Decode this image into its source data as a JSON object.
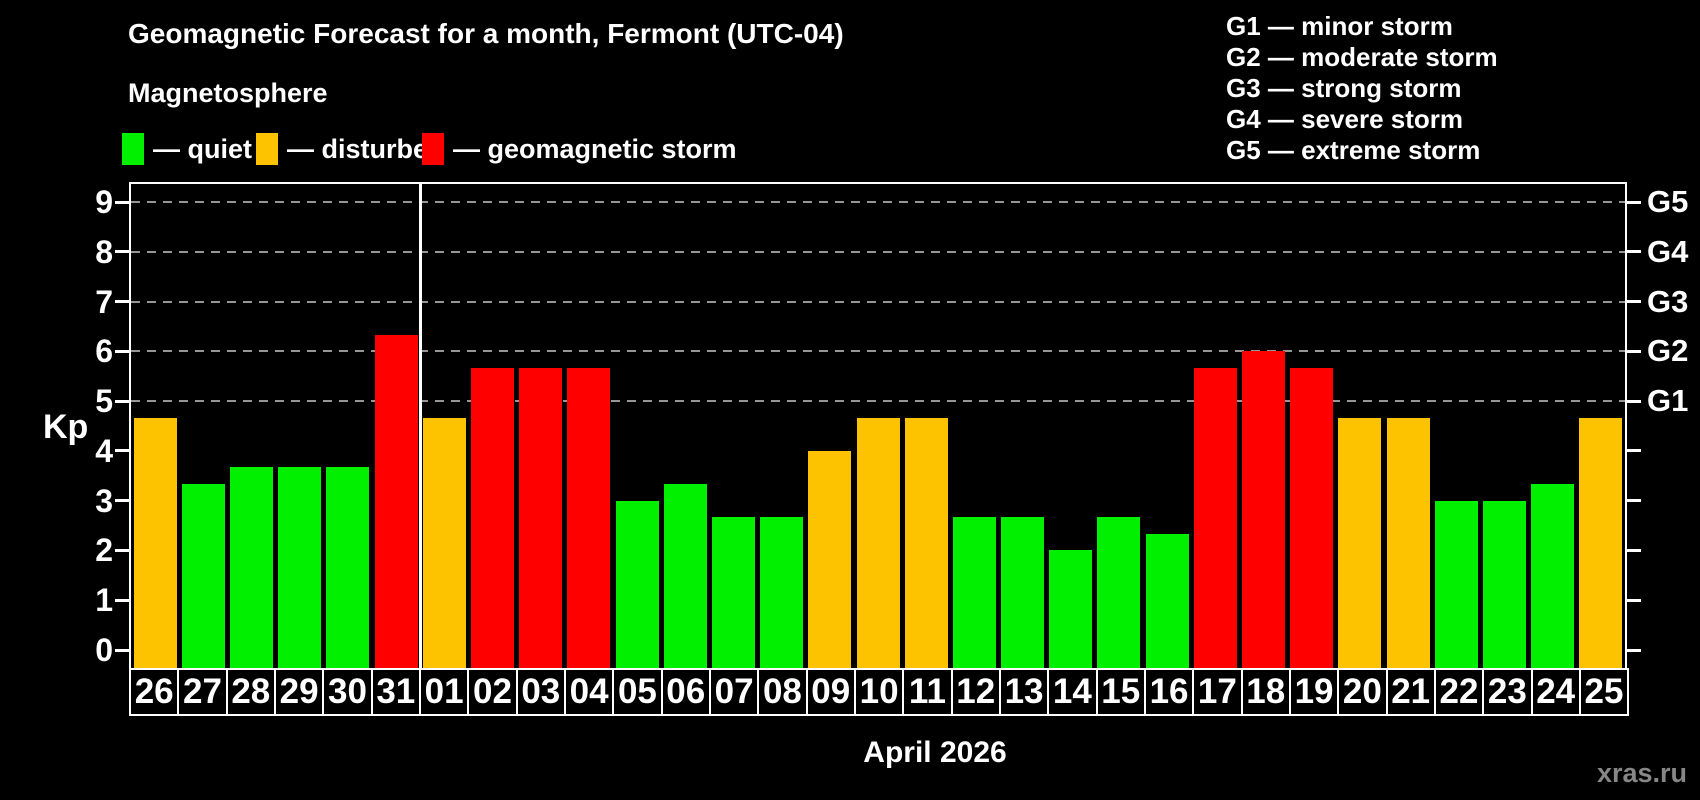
{
  "header": {
    "title": "Geomagnetic Forecast for a month, Fermont (UTC-04)",
    "subtitle": "Magnetosphere"
  },
  "legend": {
    "items": [
      {
        "key": "quiet",
        "label": "— quiet",
        "color": "#00f000"
      },
      {
        "key": "disturbed",
        "label": "— disturbed",
        "color": "#fec300"
      },
      {
        "key": "storm",
        "label": "— geomagnetic storm",
        "color": "#fe0000"
      }
    ]
  },
  "g_scale_legend": {
    "lines": [
      "G1 — minor storm",
      "G2 — moderate storm",
      "G3 — strong storm",
      "G4 — severe storm",
      "G5 — extreme storm"
    ]
  },
  "axes": {
    "y_label": "Kp",
    "y_ticks": [
      0,
      1,
      2,
      3,
      4,
      5,
      6,
      7,
      8,
      9
    ],
    "right_labels": [
      {
        "kp": 5,
        "label": "G1"
      },
      {
        "kp": 6,
        "label": "G2"
      },
      {
        "kp": 7,
        "label": "G3"
      },
      {
        "kp": 8,
        "label": "G4"
      },
      {
        "kp": 9,
        "label": "G5"
      }
    ]
  },
  "footer": {
    "x_axis_title": "April 2026",
    "watermark": "xras.ru"
  },
  "chart_data": {
    "type": "bar",
    "title": "Geomagnetic Forecast for a month, Fermont (UTC-04)",
    "xlabel": "April 2026",
    "ylabel": "Kp",
    "ylim": [
      0,
      9
    ],
    "grid": "dashed horizontal at Kp 5-9 only",
    "legend_position": "top-left",
    "gridlines_at_kp": [
      5,
      6,
      7,
      8,
      9
    ],
    "month_separator_after_index": 5,
    "categories": [
      "26",
      "27",
      "28",
      "29",
      "30",
      "31",
      "01",
      "02",
      "03",
      "04",
      "05",
      "06",
      "07",
      "08",
      "09",
      "10",
      "11",
      "12",
      "13",
      "14",
      "15",
      "16",
      "17",
      "18",
      "19",
      "20",
      "21",
      "22",
      "23",
      "24",
      "25"
    ],
    "values": [
      4.67,
      3.33,
      3.67,
      3.67,
      3.67,
      6.33,
      4.67,
      5.67,
      5.67,
      5.67,
      3.0,
      3.33,
      2.67,
      2.67,
      4.0,
      4.67,
      4.67,
      2.67,
      2.67,
      2.0,
      2.67,
      2.33,
      5.67,
      6.0,
      5.67,
      4.67,
      4.67,
      3.0,
      3.0,
      3.33,
      4.67
    ],
    "statuses": [
      "disturbed",
      "quiet",
      "quiet",
      "quiet",
      "quiet",
      "storm",
      "disturbed",
      "storm",
      "storm",
      "storm",
      "quiet",
      "quiet",
      "quiet",
      "quiet",
      "disturbed",
      "disturbed",
      "disturbed",
      "quiet",
      "quiet",
      "quiet",
      "quiet",
      "quiet",
      "storm",
      "storm",
      "storm",
      "disturbed",
      "disturbed",
      "quiet",
      "quiet",
      "quiet",
      "disturbed"
    ]
  }
}
